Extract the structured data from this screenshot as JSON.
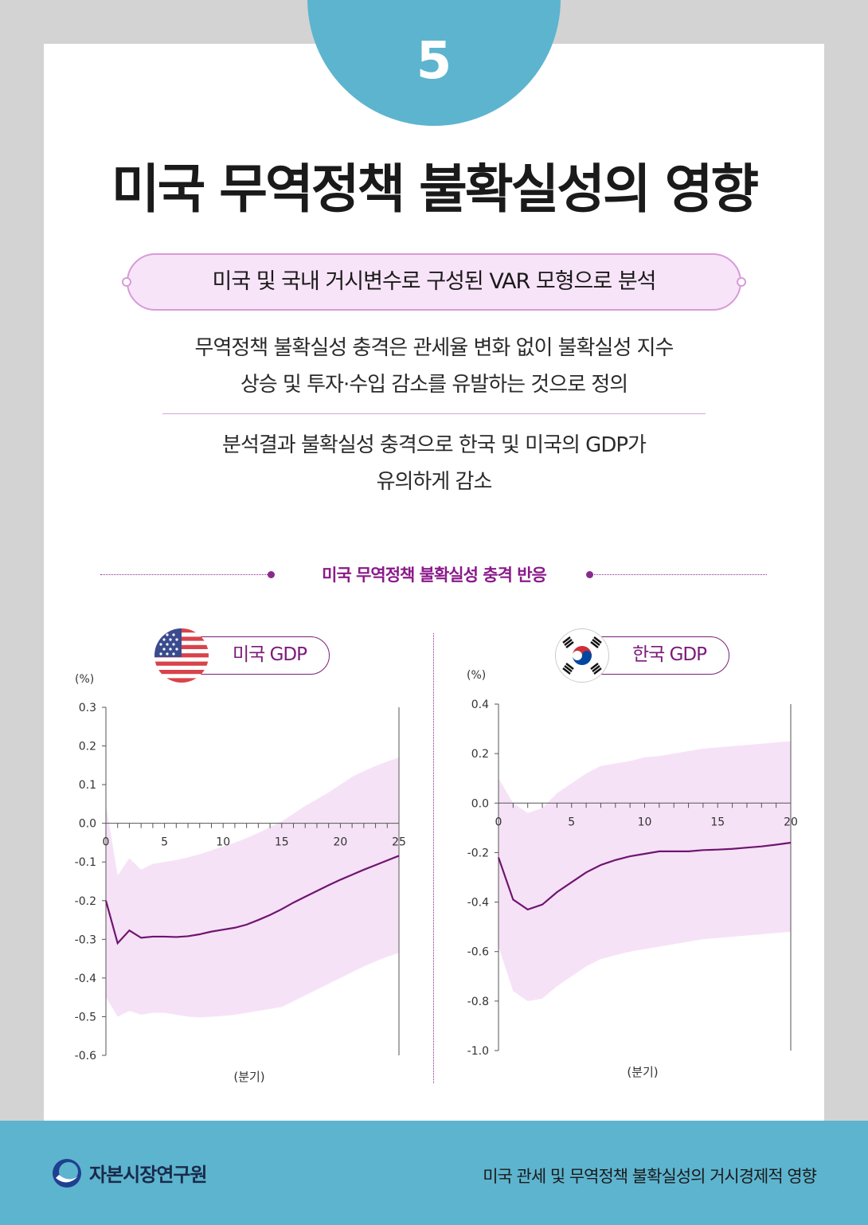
{
  "page": {
    "number": "5",
    "title": "미국 무역정책 불확실성의 영향",
    "pill": "미국 및 국내 거시변수로 구성된 VAR 모형으로 분석",
    "para1": [
      "무역정책 불확실성 충격은 관세율 변화 없이 불확실성 지수",
      "상승 및 투자·수입 감소를 유발하는 것으로 정의"
    ],
    "para2": [
      "분석결과 불확실성 충격으로 한국 및 미국의 GDP가",
      "유의하게 감소"
    ],
    "section_title": "미국 무역정책 불확실성 충격 반응"
  },
  "colors": {
    "accent_blue": "#5db4cf",
    "accent_purple": "#8a1a8a",
    "band_pink": "#f6e2f6",
    "line_purple": "#6e1570"
  },
  "chart_data": [
    {
      "type": "area",
      "badge": "미국 GDP",
      "flag": "us-flag-icon",
      "yunit": "(%)",
      "xlabel": "(분기)",
      "xlim": [
        0,
        25
      ],
      "ylim": [
        -0.6,
        0.3
      ],
      "xticks": [
        0,
        5,
        10,
        15,
        20,
        25
      ],
      "yticks": [
        0.3,
        0.2,
        0.1,
        0.0,
        -0.1,
        -0.2,
        -0.3,
        -0.4,
        -0.5,
        -0.6
      ],
      "ytick_labels": [
        "0.3",
        "0.2",
        "0.1",
        "0.0",
        "-0.1",
        "-0.2",
        "-0.3",
        "-0.4",
        "-0.5",
        "-0.6"
      ],
      "x": [
        0,
        1,
        2,
        3,
        4,
        5,
        6,
        7,
        8,
        9,
        10,
        11,
        12,
        13,
        14,
        15,
        16,
        17,
        18,
        19,
        20,
        21,
        22,
        23,
        24,
        25
      ],
      "series": [
        {
          "role": "line",
          "values": [
            -0.2,
            -0.31,
            -0.277,
            -0.296,
            -0.293,
            -0.293,
            -0.294,
            -0.292,
            -0.287,
            -0.28,
            -0.275,
            -0.27,
            -0.262,
            -0.25,
            -0.237,
            -0.222,
            -0.205,
            -0.19,
            -0.175,
            -0.16,
            -0.146,
            -0.133,
            -0.12,
            -0.108,
            -0.096,
            -0.084
          ]
        },
        {
          "role": "upper",
          "values": [
            0.05,
            -0.135,
            -0.09,
            -0.12,
            -0.105,
            -0.1,
            -0.095,
            -0.088,
            -0.08,
            -0.07,
            -0.06,
            -0.05,
            -0.038,
            -0.025,
            -0.01,
            0.005,
            0.025,
            0.045,
            0.062,
            0.08,
            0.1,
            0.12,
            0.135,
            0.148,
            0.16,
            0.17
          ]
        },
        {
          "role": "lower",
          "values": [
            -0.45,
            -0.5,
            -0.485,
            -0.495,
            -0.49,
            -0.49,
            -0.495,
            -0.5,
            -0.502,
            -0.5,
            -0.498,
            -0.495,
            -0.49,
            -0.485,
            -0.48,
            -0.475,
            -0.46,
            -0.445,
            -0.43,
            -0.415,
            -0.4,
            -0.385,
            -0.37,
            -0.357,
            -0.345,
            -0.335
          ]
        }
      ]
    },
    {
      "type": "area",
      "badge": "한국 GDP",
      "flag": "korea-flag-icon",
      "yunit": "(%)",
      "xlabel": "(분기)",
      "xlim": [
        0,
        20
      ],
      "ylim": [
        -1.0,
        0.4
      ],
      "xticks": [
        0,
        5,
        10,
        15,
        20
      ],
      "yticks": [
        0.4,
        0.2,
        0.0,
        -0.2,
        -0.4,
        -0.6,
        -0.8,
        -1.0
      ],
      "ytick_labels": [
        "0.4",
        "0.2",
        "0.0",
        "-0.2",
        "-0.4",
        "-0.6",
        "-0.8",
        "-1.0"
      ],
      "x": [
        0,
        1,
        2,
        3,
        4,
        5,
        6,
        7,
        8,
        9,
        10,
        11,
        12,
        13,
        14,
        15,
        16,
        17,
        18,
        19,
        20
      ],
      "series": [
        {
          "role": "line",
          "values": [
            -0.22,
            -0.39,
            -0.43,
            -0.41,
            -0.36,
            -0.32,
            -0.28,
            -0.25,
            -0.23,
            -0.215,
            -0.205,
            -0.195,
            -0.195,
            -0.195,
            -0.19,
            -0.188,
            -0.185,
            -0.18,
            -0.175,
            -0.168,
            -0.16
          ]
        },
        {
          "role": "upper",
          "values": [
            0.1,
            0.0,
            -0.04,
            -0.02,
            0.04,
            0.08,
            0.12,
            0.15,
            0.16,
            0.17,
            0.185,
            0.19,
            0.2,
            0.21,
            0.22,
            0.225,
            0.23,
            0.235,
            0.24,
            0.245,
            0.25
          ]
        },
        {
          "role": "lower",
          "values": [
            -0.58,
            -0.76,
            -0.8,
            -0.79,
            -0.74,
            -0.7,
            -0.66,
            -0.63,
            -0.615,
            -0.6,
            -0.59,
            -0.58,
            -0.57,
            -0.56,
            -0.55,
            -0.545,
            -0.54,
            -0.535,
            -0.53,
            -0.525,
            -0.52
          ]
        }
      ]
    }
  ],
  "footer": {
    "logo": "자본시장연구원",
    "title": "미국 관세 및 무역정책 불확실성의 거시경제적 영향"
  }
}
